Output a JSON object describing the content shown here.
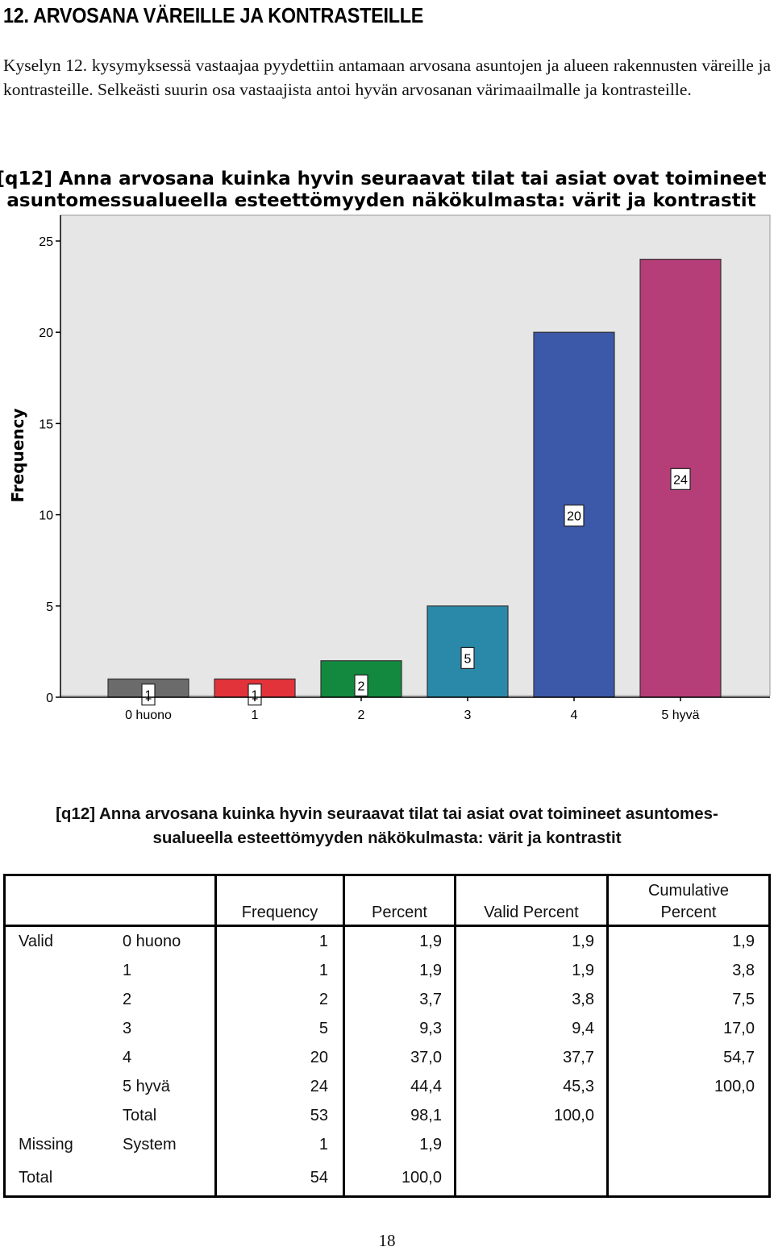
{
  "heading": "12. ARVOSANA VÄREILLE JA KONTRASTEILLE",
  "intro": "Kyselyn 12. kysymyksessä vastaajaa pyydettiin antamaan arvosana asuntojen ja alueen rakennusten väreille ja kontrasteille. Selkeästi suurin osa vastaajista antoi hyvän arvosanan värimaailmalle ja kontrasteille.",
  "chart_data": {
    "type": "bar",
    "title_lines": [
      "[q12] Anna arvosana kuinka hyvin seuraavat tilat tai asiat ovat toimineet",
      "asuntomessualueella esteettömyyden näkökulmasta: värit ja kontrastit"
    ],
    "xlabel": "",
    "ylabel": "Frequency",
    "categories": [
      "0 huono",
      "1",
      "2",
      "3",
      "4",
      "5 hyvä"
    ],
    "values": [
      1,
      1,
      2,
      5,
      20,
      24
    ],
    "data_labels": [
      "1",
      "1",
      "2",
      "5",
      "20",
      "24"
    ],
    "colors": [
      "#6b6b6b",
      "#e2323a",
      "#12893e",
      "#2a88a8",
      "#3c58a8",
      "#b53d78"
    ],
    "ylim": [
      0,
      27
    ],
    "yticks": [
      0,
      5,
      10,
      15,
      20,
      25
    ],
    "ytick_labels": [
      "0",
      "5",
      "10",
      "15",
      "20",
      "25"
    ],
    "plot_background": "#e6e6e6",
    "grid": false
  },
  "table": {
    "title_line1": "[q12] Anna arvosana kuinka hyvin seuraavat tilat tai asiat ovat toimineet asuntomes-",
    "title_line2": "sualueella esteettömyyden näkökulmasta: värit ja kontrastit",
    "headers": {
      "frequency": "Frequency",
      "percent": "Percent",
      "valid_percent": "Valid Percent",
      "cumulative_line1": "Cumulative",
      "cumulative_line2": "Percent"
    },
    "rows": [
      {
        "group": "Valid",
        "label": "0 huono",
        "frequency": "1",
        "percent": "1,9",
        "valid_percent": "1,9",
        "cumulative": "1,9"
      },
      {
        "group": "",
        "label": "1",
        "frequency": "1",
        "percent": "1,9",
        "valid_percent": "1,9",
        "cumulative": "3,8"
      },
      {
        "group": "",
        "label": "2",
        "frequency": "2",
        "percent": "3,7",
        "valid_percent": "3,8",
        "cumulative": "7,5"
      },
      {
        "group": "",
        "label": "3",
        "frequency": "5",
        "percent": "9,3",
        "valid_percent": "9,4",
        "cumulative": "17,0"
      },
      {
        "group": "",
        "label": "4",
        "frequency": "20",
        "percent": "37,0",
        "valid_percent": "37,7",
        "cumulative": "54,7"
      },
      {
        "group": "",
        "label": "5 hyvä",
        "frequency": "24",
        "percent": "44,4",
        "valid_percent": "45,3",
        "cumulative": "100,0"
      },
      {
        "group": "",
        "label": "Total",
        "frequency": "53",
        "percent": "98,1",
        "valid_percent": "100,0",
        "cumulative": ""
      },
      {
        "group": "Missing",
        "label": "System",
        "frequency": "1",
        "percent": "1,9",
        "valid_percent": "",
        "cumulative": ""
      },
      {
        "group": "Total",
        "label": "",
        "frequency": "54",
        "percent": "100,0",
        "valid_percent": "",
        "cumulative": ""
      }
    ]
  },
  "page_number": "18"
}
